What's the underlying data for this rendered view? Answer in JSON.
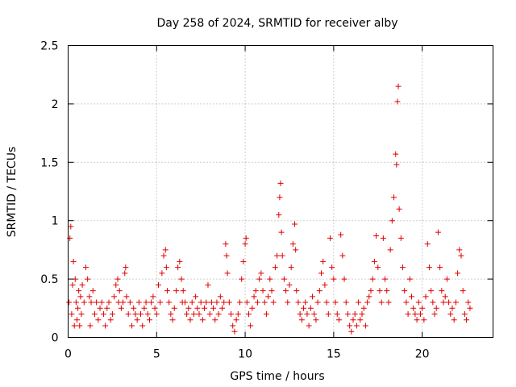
{
  "chart_data": {
    "type": "scatter",
    "title": "Day 258 of 2024, SRMTID for receiver alby",
    "xlabel": "GPS time / hours",
    "ylabel": "SRMTID / TECUs",
    "xlim": [
      0,
      24
    ],
    "ylim": [
      0,
      2.5
    ],
    "xticks": [
      0,
      5,
      10,
      15,
      20
    ],
    "yticks": [
      0,
      0.5,
      1,
      1.5,
      2,
      2.5
    ],
    "xtick_labels": [
      "0",
      "5",
      "10",
      "15",
      "20"
    ],
    "ytick_labels": [
      "0",
      "0.5",
      "1",
      "1.5",
      "2",
      "2.5"
    ],
    "grid": true,
    "marker": "+",
    "color": "#e00000",
    "series": [
      {
        "name": "SRMTID",
        "x": [
          0.05,
          0.1,
          0.15,
          0.2,
          0.25,
          0.3,
          0.35,
          0.4,
          0.45,
          0.5,
          0.55,
          0.6,
          0.65,
          0.7,
          0.75,
          0.8,
          0.9,
          1.0,
          1.1,
          1.2,
          1.25,
          1.3,
          1.4,
          1.5,
          1.6,
          1.7,
          1.8,
          1.9,
          2.0,
          2.1,
          2.2,
          2.3,
          2.4,
          2.5,
          2.6,
          2.7,
          2.8,
          2.85,
          2.9,
          3.0,
          3.1,
          3.2,
          3.25,
          3.3,
          3.4,
          3.5,
          3.6,
          3.7,
          3.8,
          3.9,
          4.0,
          4.1,
          4.2,
          4.3,
          4.4,
          4.5,
          4.6,
          4.7,
          4.8,
          4.9,
          5.0,
          5.1,
          5.2,
          5.3,
          5.4,
          5.5,
          5.55,
          5.6,
          5.7,
          5.8,
          5.9,
          6.0,
          6.1,
          6.2,
          6.3,
          6.4,
          6.45,
          6.5,
          6.6,
          6.7,
          6.8,
          6.9,
          7.0,
          7.1,
          7.2,
          7.3,
          7.4,
          7.5,
          7.6,
          7.7,
          7.8,
          7.9,
          8.0,
          8.1,
          8.2,
          8.3,
          8.4,
          8.5,
          8.6,
          8.7,
          8.8,
          8.9,
          8.95,
          9.0,
          9.1,
          9.2,
          9.3,
          9.4,
          9.5,
          9.6,
          9.7,
          9.8,
          9.9,
          10.0,
          10.05,
          10.1,
          10.2,
          10.3,
          10.4,
          10.5,
          10.6,
          10.7,
          10.8,
          10.9,
          11.0,
          11.1,
          11.2,
          11.3,
          11.4,
          11.5,
          11.6,
          11.7,
          11.8,
          11.9,
          11.95,
          12.0,
          12.05,
          12.1,
          12.2,
          12.3,
          12.4,
          12.5,
          12.6,
          12.7,
          12.8,
          12.85,
          12.9,
          13.0,
          13.1,
          13.2,
          13.3,
          13.4,
          13.5,
          13.6,
          13.7,
          13.8,
          13.9,
          14.0,
          14.1,
          14.2,
          14.3,
          14.4,
          14.5,
          14.6,
          14.7,
          14.8,
          14.9,
          15.0,
          15.1,
          15.2,
          15.3,
          15.4,
          15.5,
          15.6,
          15.7,
          15.8,
          15.9,
          16.0,
          16.1,
          16.2,
          16.3,
          16.4,
          16.5,
          16.6,
          16.7,
          16.8,
          16.9,
          17.0,
          17.1,
          17.2,
          17.3,
          17.4,
          17.5,
          17.6,
          17.7,
          17.8,
          17.9,
          18.0,
          18.1,
          18.2,
          18.3,
          18.4,
          18.5,
          18.55,
          18.6,
          18.65,
          18.7,
          18.8,
          18.9,
          19.0,
          19.1,
          19.2,
          19.3,
          19.4,
          19.5,
          19.6,
          19.7,
          19.8,
          19.9,
          20.0,
          20.1,
          20.2,
          20.3,
          20.4,
          20.5,
          20.6,
          20.7,
          20.8,
          20.9,
          21.0,
          21.1,
          21.2,
          21.3,
          21.4,
          21.5,
          21.6,
          21.7,
          21.8,
          21.9,
          22.0,
          22.1,
          22.2,
          22.3,
          22.4,
          22.5,
          22.6,
          22.7
        ],
        "y": [
          0.3,
          0.85,
          0.95,
          0.2,
          0.45,
          0.65,
          0.1,
          0.5,
          0.3,
          0.15,
          0.25,
          0.4,
          0.1,
          0.35,
          0.2,
          0.45,
          0.3,
          0.6,
          0.5,
          0.35,
          0.1,
          0.3,
          0.4,
          0.2,
          0.3,
          0.15,
          0.25,
          0.3,
          0.2,
          0.1,
          0.25,
          0.3,
          0.15,
          0.2,
          0.35,
          0.45,
          0.5,
          0.3,
          0.4,
          0.25,
          0.3,
          0.55,
          0.6,
          0.35,
          0.2,
          0.3,
          0.1,
          0.25,
          0.2,
          0.15,
          0.3,
          0.2,
          0.1,
          0.25,
          0.3,
          0.2,
          0.15,
          0.3,
          0.35,
          0.25,
          0.2,
          0.45,
          0.3,
          0.55,
          0.7,
          0.75,
          0.6,
          0.4,
          0.3,
          0.2,
          0.15,
          0.25,
          0.4,
          0.6,
          0.65,
          0.5,
          0.3,
          0.4,
          0.3,
          0.2,
          0.25,
          0.15,
          0.3,
          0.2,
          0.35,
          0.25,
          0.2,
          0.3,
          0.15,
          0.25,
          0.3,
          0.45,
          0.2,
          0.3,
          0.25,
          0.15,
          0.3,
          0.2,
          0.35,
          0.25,
          0.3,
          0.8,
          0.7,
          0.55,
          0.3,
          0.2,
          0.1,
          0.05,
          0.15,
          0.2,
          0.3,
          0.5,
          0.65,
          0.8,
          0.85,
          0.3,
          0.2,
          0.1,
          0.25,
          0.35,
          0.4,
          0.3,
          0.5,
          0.55,
          0.4,
          0.3,
          0.2,
          0.35,
          0.5,
          0.4,
          0.3,
          0.6,
          0.7,
          1.05,
          1.2,
          1.32,
          0.9,
          0.7,
          0.5,
          0.4,
          0.3,
          0.45,
          0.6,
          0.8,
          0.97,
          0.75,
          0.4,
          0.3,
          0.2,
          0.15,
          0.25,
          0.3,
          0.2,
          0.1,
          0.25,
          0.35,
          0.2,
          0.15,
          0.3,
          0.4,
          0.55,
          0.65,
          0.45,
          0.3,
          0.2,
          0.85,
          0.6,
          0.5,
          0.3,
          0.2,
          0.15,
          0.88,
          0.7,
          0.5,
          0.3,
          0.2,
          0.1,
          0.05,
          0.15,
          0.2,
          0.1,
          0.3,
          0.15,
          0.2,
          0.25,
          0.1,
          0.3,
          0.35,
          0.4,
          0.5,
          0.65,
          0.87,
          0.6,
          0.4,
          0.3,
          0.85,
          0.5,
          0.4,
          0.3,
          0.75,
          1.0,
          1.2,
          1.57,
          1.48,
          2.02,
          2.15,
          1.1,
          0.85,
          0.6,
          0.4,
          0.3,
          0.2,
          0.5,
          0.35,
          0.25,
          0.2,
          0.15,
          0.3,
          0.2,
          0.25,
          0.15,
          0.35,
          0.8,
          0.6,
          0.4,
          0.3,
          0.2,
          0.25,
          0.9,
          0.6,
          0.4,
          0.3,
          0.35,
          0.5,
          0.3,
          0.2,
          0.25,
          0.15,
          0.3,
          0.55,
          0.75,
          0.7,
          0.4,
          0.2,
          0.15,
          0.3,
          0.25
        ]
      }
    ]
  }
}
